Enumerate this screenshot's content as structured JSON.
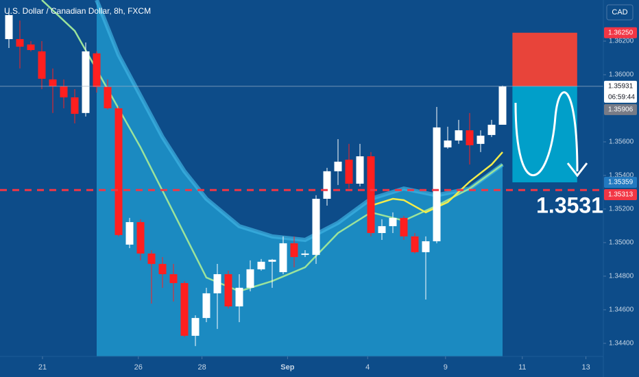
{
  "chart_data": {
    "type": "candlestick",
    "title": "U.S. Dollar / Canadian Dollar, 8h, FXCM",
    "currency": "CAD",
    "up_color": "#ffffff",
    "down_color": "#ff1f1f",
    "open": [
      1.36212,
      1.36212,
      1.3618,
      1.36139,
      1.35972,
      1.35931,
      1.35865,
      1.35772,
      1.36127,
      1.35927,
      1.358,
      1.34988,
      1.35122,
      1.34935,
      1.34873,
      1.34812,
      1.34759,
      1.34445,
      1.34551,
      1.34698,
      1.34812,
      1.3462,
      1.34731,
      1.34841,
      1.34886,
      1.34824,
      1.34996,
      1.34927,
      1.34927,
      1.35261,
      1.35425,
      1.35494,
      1.35351,
      1.35514,
      1.35057,
      1.35098,
      1.35147,
      1.35037,
      1.34943,
      1.35008,
      1.35567,
      1.35608,
      1.35669,
      1.35588,
      1.35641,
      1.35702
    ],
    "high": [
      1.36384,
      1.36323,
      1.362,
      1.362,
      1.36037,
      1.35972,
      1.35914,
      1.36192,
      1.36139,
      1.35972,
      1.35812,
      1.35147,
      1.35139,
      1.34955,
      1.34914,
      1.34873,
      1.34771,
      1.34567,
      1.34731,
      1.34873,
      1.34833,
      1.34812,
      1.34894,
      1.34902,
      1.34902,
      1.35037,
      1.35037,
      1.34955,
      1.35282,
      1.35445,
      1.35616,
      1.35588,
      1.35588,
      1.35539,
      1.35139,
      1.3518,
      1.35159,
      1.35057,
      1.35037,
      1.35808,
      1.3569,
      1.35731,
      1.35772,
      1.35669,
      1.35731,
      1.35935
    ],
    "low": [
      1.36159,
      1.36037,
      1.36139,
      1.35914,
      1.35772,
      1.358,
      1.3571,
      1.35751,
      1.35894,
      1.35792,
      1.35037,
      1.34967,
      1.34894,
      1.34637,
      1.34731,
      1.34649,
      1.34437,
      1.34384,
      1.34526,
      1.34486,
      1.34608,
      1.34526,
      1.3471,
      1.34833,
      1.34731,
      1.34812,
      1.34853,
      1.34914,
      1.34873,
      1.3522,
      1.35343,
      1.35322,
      1.35335,
      1.35037,
      1.35016,
      1.35057,
      1.35016,
      1.34935,
      1.34661,
      1.34996,
      1.35559,
      1.35588,
      1.35465,
      1.35539,
      1.35629,
      1.35702
    ],
    "close": [
      1.36355,
      1.36167,
      1.36147,
      1.35976,
      1.35931,
      1.35865,
      1.35767,
      1.36139,
      1.35927,
      1.358,
      1.35045,
      1.35122,
      1.34935,
      1.34873,
      1.34812,
      1.34759,
      1.34445,
      1.34551,
      1.34698,
      1.34812,
      1.3462,
      1.34731,
      1.34841,
      1.34886,
      1.34898,
      1.34996,
      1.34914,
      1.34935,
      1.35261,
      1.35425,
      1.35482,
      1.35351,
      1.35514,
      1.35057,
      1.35098,
      1.35147,
      1.35037,
      1.34943,
      1.35008,
      1.35686,
      1.35608,
      1.35669,
      1.3558,
      1.35637,
      1.35702,
      1.35931
    ],
    "cloud": {
      "color": "#1b8ac1",
      "edge_color": "#3fb4e2",
      "x": [
        8,
        10,
        12,
        14,
        16,
        18,
        21,
        24,
        27,
        30,
        33,
        36,
        39,
        42,
        45
      ],
      "values": [
        1.36445,
        1.36118,
        1.35874,
        1.35629,
        1.35425,
        1.35261,
        1.35098,
        1.35037,
        1.35016,
        1.35118,
        1.35261,
        1.35322,
        1.35282,
        1.35322,
        1.35465
      ]
    },
    "lines": [
      {
        "color": "#9be39b",
        "x": [
          3,
          6,
          9,
          12,
          15,
          18,
          21,
          24,
          27,
          30,
          33,
          36,
          39,
          42,
          45
        ],
        "values": [
          1.36445,
          1.36261,
          1.35914,
          1.35567,
          1.3518,
          1.34792,
          1.3471,
          1.34771,
          1.34853,
          1.35057,
          1.3518,
          1.35131,
          1.3522,
          1.35322,
          1.35465
        ]
      },
      {
        "color": "#f3ec4a",
        "x": [
          33,
          35,
          36,
          38,
          40,
          42,
          44,
          45
        ],
        "values": [
          1.3522,
          1.35261,
          1.35253,
          1.3518,
          1.35241,
          1.35363,
          1.35465,
          1.35539
        ]
      }
    ],
    "xlim": [
      -0.8125,
      54.1875
    ],
    "ylim": [
      1.34322,
      1.36445
    ],
    "xticks": [
      {
        "value": 3.06,
        "label": "21"
      },
      {
        "value": 11.8,
        "label": "26"
      },
      {
        "value": 17.6,
        "label": "28"
      },
      {
        "value": 25.4,
        "label": "Sep"
      },
      {
        "value": 32.7,
        "label": "4"
      },
      {
        "value": 39.8,
        "label": "9"
      },
      {
        "value": 46.8,
        "label": "11"
      },
      {
        "value": 52.6,
        "label": "13"
      }
    ],
    "yticks": [
      {
        "value": 1.362,
        "label": "1.36200"
      },
      {
        "value": 1.36,
        "label": "1.36000"
      },
      {
        "value": 1.356,
        "label": "1.35600"
      },
      {
        "value": 1.354,
        "label": "1.35400"
      },
      {
        "value": 1.352,
        "label": "1.35200"
      },
      {
        "value": 1.35,
        "label": "1.35000"
      },
      {
        "value": 1.348,
        "label": "1.34800"
      },
      {
        "value": 1.346,
        "label": "1.34600"
      },
      {
        "value": 1.344,
        "label": "1.34400"
      }
    ],
    "grid": false,
    "price_labels": [
      {
        "value": 1.3625,
        "label": "1.36250",
        "color": "#f23645"
      },
      {
        "value": 1.35931,
        "label": "1.35931",
        "countdown": "06:59:44",
        "color": "#ffffff"
      },
      {
        "value": 1.35906,
        "label": "1.35906",
        "color": "#787b86"
      },
      {
        "value": 1.35359,
        "label": "1.35359",
        "color": "#2279c0"
      },
      {
        "value": 1.35313,
        "label": "1.35313",
        "color": "#f23645"
      }
    ],
    "position": {
      "x": [
        45.9,
        51.8
      ],
      "stop_color": "#f44336",
      "target_color": "#00a8d0"
    },
    "annotation": "1.3531"
  }
}
